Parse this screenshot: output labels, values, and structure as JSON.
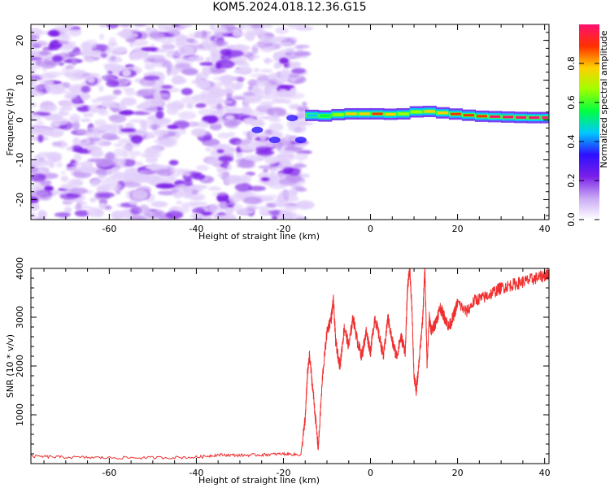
{
  "title": "KOM5.2024.018.12.36.G15",
  "chart_data": [
    {
      "type": "heatmap",
      "xlabel": "Height of straight line (km)",
      "ylabel": "Frequency (Hz)",
      "xlim": [
        -78,
        41
      ],
      "ylim": [
        -25,
        24
      ],
      "xticks": [
        -60,
        -40,
        -20,
        0,
        20,
        40
      ],
      "yticks": [
        -20,
        -10,
        0,
        10,
        20
      ],
      "noise_region_x": [
        -78,
        -15
      ],
      "signal_track": {
        "x": [
          -15,
          -12,
          -9,
          -6,
          -3,
          0,
          3,
          6,
          9,
          12,
          15,
          18,
          21,
          24,
          27,
          30,
          33,
          36,
          39,
          41
        ],
        "freq": [
          1.5,
          0.8,
          1.2,
          1.5,
          1.6,
          1.5,
          1.6,
          1.3,
          1.8,
          2.3,
          2.0,
          1.6,
          1.4,
          1.0,
          0.9,
          0.8,
          0.7,
          0.6,
          0.6,
          0.6
        ],
        "amplitude": [
          0.35,
          0.45,
          0.55,
          0.75,
          0.8,
          0.85,
          0.85,
          0.7,
          0.65,
          0.75,
          0.8,
          0.85,
          0.85,
          0.9,
          0.95,
          0.95,
          0.95,
          0.95,
          0.95,
          0.95
        ]
      },
      "colorbar": {
        "label": "Normalized spectral amplitude",
        "range": [
          0,
          1
        ],
        "ticks": [
          0.0,
          0.2,
          0.4,
          0.6,
          0.8
        ],
        "colors": [
          "#ffffff",
          "#c8a8f4",
          "#7a1ee8",
          "#2c10ff",
          "#00c8ff",
          "#00ff40",
          "#a0ff00",
          "#ffd000",
          "#ff3000",
          "#ff1070"
        ]
      }
    },
    {
      "type": "line",
      "xlabel": "Height of straight line (km)",
      "ylabel": "SNR (10 * v/v)",
      "xlim": [
        -78,
        41
      ],
      "ylim": [
        0,
        4000
      ],
      "xticks": [
        -60,
        -40,
        -20,
        0,
        20,
        40
      ],
      "yticks": [
        1000,
        2000,
        3000,
        4000
      ],
      "color": "#f03030",
      "series": [
        {
          "x": [
            -78,
            -70,
            -60,
            -50,
            -40,
            -35,
            -30,
            -25,
            -20,
            -16,
            -15,
            -14.5,
            -14,
            -13,
            -12,
            -11,
            -10,
            -9,
            -8.5,
            -8,
            -7,
            -6,
            -5,
            -4,
            -3,
            -2,
            -1,
            0,
            1,
            2,
            3,
            4,
            5,
            6,
            7,
            8,
            8.5,
            9,
            9.5,
            10,
            10.5,
            11,
            12,
            12.5,
            13,
            13.5,
            14,
            15,
            16,
            17,
            18,
            19,
            20,
            22,
            24,
            26,
            28,
            30,
            32,
            34,
            36,
            38,
            40,
            41
          ],
          "y": [
            150,
            130,
            120,
            120,
            130,
            180,
            170,
            180,
            200,
            180,
            900,
            1800,
            2200,
            1300,
            300,
            1800,
            2700,
            3000,
            3350,
            2500,
            2000,
            2800,
            2400,
            3000,
            2500,
            2200,
            2700,
            2300,
            3000,
            2600,
            2200,
            3000,
            2500,
            2200,
            2600,
            2300,
            3600,
            4000,
            3200,
            1800,
            1500,
            1900,
            3000,
            4000,
            2000,
            3000,
            2700,
            2900,
            3200,
            3000,
            2800,
            3000,
            3300,
            3100,
            3350,
            3400,
            3500,
            3600,
            3650,
            3700,
            3750,
            3800,
            3850,
            3900
          ]
        }
      ]
    }
  ]
}
